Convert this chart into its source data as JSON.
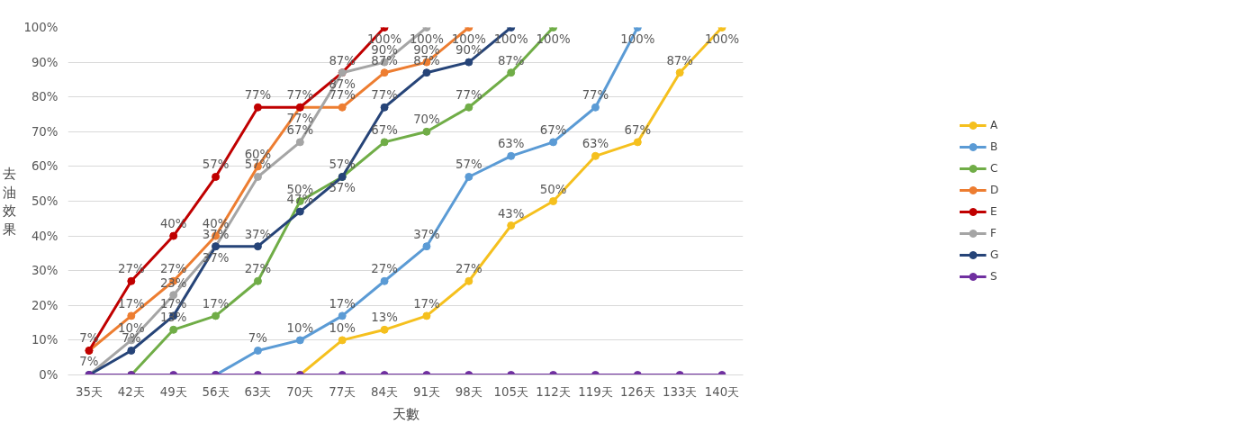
{
  "chart_data": {
    "type": "line",
    "xlabel": "天數",
    "ylabel": "去油效果",
    "categories": [
      "35天",
      "42天",
      "49天",
      "56天",
      "63天",
      "70天",
      "77天",
      "84天",
      "91天",
      "98天",
      "105天",
      "112天",
      "119天",
      "126天",
      "133天",
      "140天"
    ],
    "ylim": [
      0,
      100
    ],
    "yticks": [
      {
        "value": 0,
        "label": "0%"
      },
      {
        "value": 10,
        "label": "10%"
      },
      {
        "value": 20,
        "label": "20%"
      },
      {
        "value": 30,
        "label": "30%"
      },
      {
        "value": 40,
        "label": "40%"
      },
      {
        "value": 50,
        "label": "50%"
      },
      {
        "value": 60,
        "label": "60%"
      },
      {
        "value": 70,
        "label": "70%"
      },
      {
        "value": 80,
        "label": "80%"
      },
      {
        "value": 90,
        "label": "90%"
      },
      {
        "value": 100,
        "label": "100%"
      }
    ],
    "grid": "y",
    "legend": "right",
    "marker": "circle",
    "line_style": "solid",
    "series": [
      {
        "name": "A",
        "color": "#f5c01e",
        "values": [
          null,
          null,
          null,
          null,
          null,
          0,
          10,
          13,
          17,
          27,
          43,
          50,
          63,
          67,
          87,
          100
        ],
        "value_labels": [
          null,
          null,
          null,
          null,
          null,
          null,
          "10%",
          "13%",
          "17%",
          "27%",
          "43%",
          "50%",
          "63%",
          "67%",
          "87%",
          "100%"
        ]
      },
      {
        "name": "B",
        "color": "#5b9bd5",
        "values": [
          null,
          null,
          null,
          0,
          7,
          10,
          17,
          27,
          37,
          57,
          63,
          67,
          77,
          100,
          null,
          null
        ],
        "value_labels": [
          null,
          null,
          null,
          null,
          "7%",
          "10%",
          "17%",
          "27%",
          "37%",
          "57%",
          "63%",
          "67%",
          "77%",
          "100%",
          null,
          null
        ]
      },
      {
        "name": "C",
        "color": "#70ad47",
        "values": [
          null,
          0,
          13,
          17,
          27,
          50,
          57,
          67,
          70,
          77,
          87,
          100,
          null,
          null,
          null,
          null
        ],
        "value_labels": [
          null,
          null,
          "13%",
          "17%",
          "27%",
          "50%",
          "57%",
          "67%",
          "70%",
          "77%",
          "87%",
          "100%",
          null,
          null,
          null,
          null
        ]
      },
      {
        "name": "D",
        "color": "#ed7d31",
        "values": [
          7,
          17,
          27,
          40,
          60,
          77,
          77,
          87,
          90,
          100,
          null,
          null,
          null,
          null,
          null,
          null
        ],
        "value_labels": [
          "7%",
          "17%",
          "27%",
          "40%",
          "60%",
          "77%",
          "77%",
          "87%",
          "90%",
          "100%",
          null,
          null,
          null,
          null,
          null,
          null
        ]
      },
      {
        "name": "E",
        "color": "#c00000",
        "values": [
          7,
          27,
          40,
          57,
          77,
          77,
          87,
          100,
          null,
          null,
          null,
          null,
          null,
          null,
          null,
          null
        ],
        "value_labels": [
          "7%",
          "27%",
          "40%",
          "57%",
          "77%",
          "77%",
          "87%",
          "100%",
          null,
          null,
          null,
          null,
          null,
          null,
          null,
          null
        ]
      },
      {
        "name": "F",
        "color": "#a5a5a5",
        "values": [
          0,
          10,
          23,
          37,
          57,
          67,
          87,
          90,
          100,
          null,
          null,
          null,
          null,
          null,
          null,
          null
        ],
        "value_labels": [
          null,
          "10%",
          "23%",
          "37%",
          "57%",
          "67%",
          "87%",
          "90%",
          "100%",
          null,
          null,
          null,
          null,
          null,
          null,
          null
        ]
      },
      {
        "name": "G",
        "color": "#264478",
        "values": [
          0,
          7,
          17,
          37,
          37,
          47,
          57,
          77,
          87,
          90,
          100,
          null,
          null,
          null,
          null,
          null
        ],
        "value_labels": [
          null,
          "7%",
          "17%",
          "37%",
          "37%",
          "47%",
          "57%",
          "77%",
          "87%",
          "90%",
          "100%",
          null,
          null,
          null,
          null,
          null
        ]
      },
      {
        "name": "S",
        "color": "#7030a0",
        "values": [
          0,
          0,
          0,
          0,
          0,
          0,
          0,
          0,
          0,
          0,
          0,
          0,
          0,
          0,
          0,
          0
        ],
        "value_labels": [
          null,
          null,
          null,
          null,
          null,
          null,
          null,
          null,
          null,
          null,
          null,
          null,
          null,
          null,
          null,
          null
        ]
      }
    ]
  }
}
